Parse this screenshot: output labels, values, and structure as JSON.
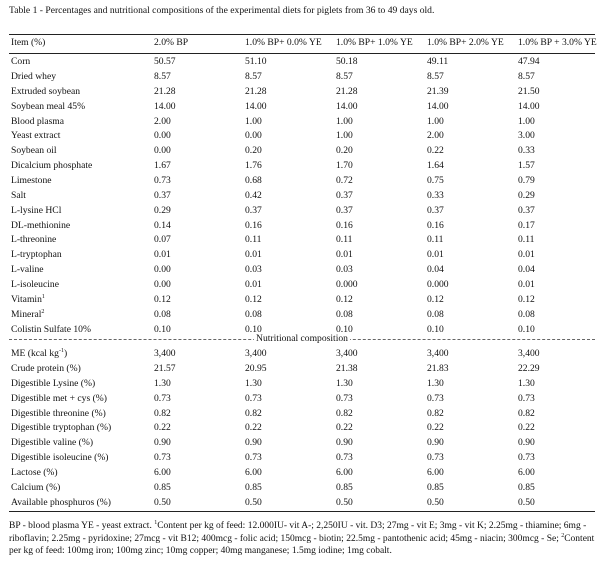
{
  "caption": "Table 1 - Percentages and nutritional compositions of the experimental diets for piglets from 36 to 49 days old.",
  "headers": [
    "Item (%)",
    "2.0% BP",
    "1.0% BP+ 0.0% YE",
    "1.0% BP+ 1.0% YE",
    "1.0% BP+ 2.0% YE",
    "1.0% BP + 3.0% YE"
  ],
  "ingredients": [
    {
      "item": "Corn",
      "values": [
        "50.57",
        "51.10",
        "50.18",
        "49.11",
        "47.94"
      ]
    },
    {
      "item": "Dried whey",
      "values": [
        "8.57",
        "8.57",
        "8.57",
        "8.57",
        "8.57"
      ]
    },
    {
      "item": "Extruded soybean",
      "values": [
        "21.28",
        "21.28",
        "21.28",
        "21.39",
        "21.50"
      ]
    },
    {
      "item": "Soybean meal 45%",
      "values": [
        "14.00",
        "14.00",
        "14.00",
        "14.00",
        "14.00"
      ]
    },
    {
      "item": "Blood plasma",
      "values": [
        "2.00",
        "1.00",
        "1.00",
        "1.00",
        "1.00"
      ]
    },
    {
      "item": "Yeast extract",
      "values": [
        "0.00",
        "0.00",
        "1.00",
        "2.00",
        "3.00"
      ]
    },
    {
      "item": "Soybean oil",
      "values": [
        "0.00",
        "0.20",
        "0.20",
        "0.22",
        "0.33"
      ]
    },
    {
      "item": "Dicalcium phosphate",
      "values": [
        "1.67",
        "1.76",
        "1.70",
        "1.64",
        "1.57"
      ]
    },
    {
      "item": "Limestone",
      "values": [
        "0.73",
        "0.68",
        "0.72",
        "0.75",
        "0.79"
      ]
    },
    {
      "item": "Salt",
      "values": [
        "0.37",
        "0.42",
        "0.37",
        "0.33",
        "0.29"
      ]
    },
    {
      "item": "L-lysine HCl",
      "values": [
        "0.29",
        "0.37",
        "0.37",
        "0.37",
        "0.37"
      ]
    },
    {
      "item": "DL-methionine",
      "values": [
        "0.14",
        "0.16",
        "0.16",
        "0.16",
        "0.17"
      ]
    },
    {
      "item": "L-threonine",
      "values": [
        "0.07",
        "0.11",
        "0.11",
        "0.11",
        "0.11"
      ]
    },
    {
      "item": "L-tryptophan",
      "values": [
        "0.01",
        "0.01",
        "0.01",
        "0.01",
        "0.01"
      ]
    },
    {
      "item": "L-valine",
      "values": [
        "0.00",
        "0.03",
        "0.03",
        "0.04",
        "0.04"
      ]
    },
    {
      "item": "L-isoleucine",
      "values": [
        "0.00",
        "0.01",
        "0.000",
        "0.000",
        "0.01"
      ]
    },
    {
      "item": "Vitamin",
      "sup": "1",
      "values": [
        "0.12",
        "0.12",
        "0.12",
        "0.12",
        "0.12"
      ]
    },
    {
      "item": "Mineral",
      "sup": "2",
      "values": [
        "0.08",
        "0.08",
        "0.08",
        "0.08",
        "0.08"
      ]
    },
    {
      "item": "Colistin Sulfate 10%",
      "values": [
        "0.10",
        "0.10",
        "0.10",
        "0.10",
        "0.10"
      ]
    }
  ],
  "section_label": "Nutritional composition",
  "nutrition": [
    {
      "item": "ME (kcal kg",
      "sup": "-1",
      "item_end": ")",
      "values": [
        "3,400",
        "3,400",
        "3,400",
        "3,400",
        "3,400"
      ]
    },
    {
      "item": "Crude protein (%)",
      "values": [
        "21.57",
        "20.95",
        "21.38",
        "21.83",
        "22.29"
      ]
    },
    {
      "item": "Digestible Lysine (%)",
      "values": [
        "1.30",
        "1.30",
        "1.30",
        "1.30",
        "1.30"
      ]
    },
    {
      "item": "Digestible met + cys (%)",
      "values": [
        "0.73",
        "0.73",
        "0.73",
        "0.73",
        "0.73"
      ]
    },
    {
      "item": "Digestible threonine (%)",
      "values": [
        "0.82",
        "0.82",
        "0.82",
        "0.82",
        "0.82"
      ]
    },
    {
      "item": "Digestible tryptophan (%)",
      "values": [
        "0.22",
        "0.22",
        "0.22",
        "0.22",
        "0.22"
      ]
    },
    {
      "item": "Digestible valine (%)",
      "values": [
        "0.90",
        "0.90",
        "0.90",
        "0.90",
        "0.90"
      ]
    },
    {
      "item": "Digestible isoleucine (%)",
      "values": [
        "0.73",
        "0.73",
        "0.73",
        "0.73",
        "0.73"
      ]
    },
    {
      "item": "Lactose (%)",
      "values": [
        "6.00",
        "6.00",
        "6.00",
        "6.00",
        "6.00"
      ]
    },
    {
      "item": "Calcium (%)",
      "values": [
        "0.85",
        "0.85",
        "0.85",
        "0.85",
        "0.85"
      ]
    },
    {
      "item": "Available phosphuros (%)",
      "values": [
        "0.50",
        "0.50",
        "0.50",
        "0.50",
        "0.50"
      ]
    }
  ],
  "footnote": {
    "part1": "BP - blood plasma YE - yeast extract. ",
    "sup1": "1",
    "part2": "Content per kg of feed: 12.000IU- vit A-; 2,250IU - vit. D3; 27mg - vit E; 3mg - vit K; 2.25mg - thiamine; 6mg - riboflavin; 2.25mg - pyridoxine; 27mcg - vit B12; 400mcg - folic acid; 150mcg - biotin; 22.5mg - pantothenic acid; 45mg - niacin; 300mcg - Se; ",
    "sup2": "2",
    "part3": "Content per kg of feed: 100mg iron; 100mg zinc; 10mg copper; 40mg manganese; 1.5mg iodine; 1mg cobalt."
  }
}
